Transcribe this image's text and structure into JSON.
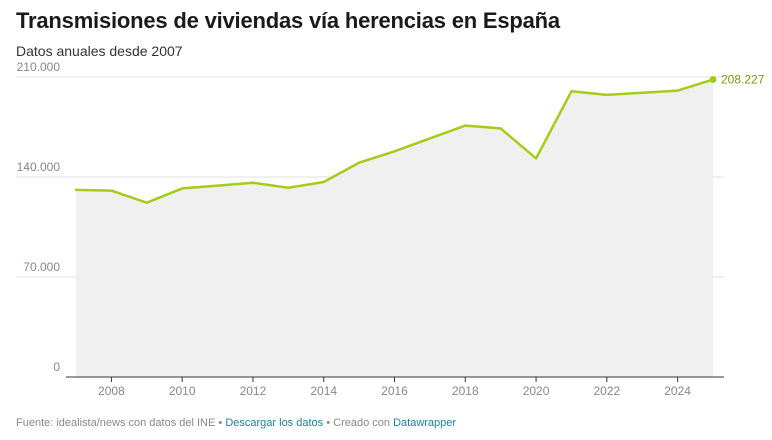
{
  "header": {
    "title": "Transmisiones de viviendas vía herencias en España",
    "subtitle": "Datos anuales desde 2007"
  },
  "chart_data": {
    "type": "area",
    "title": "Transmisiones de viviendas vía herencias en España",
    "subtitle": "Datos anuales desde 2007",
    "xlabel": "",
    "ylabel": "",
    "x": [
      2007,
      2008,
      2009,
      2010,
      2011,
      2012,
      2013,
      2014,
      2015,
      2016,
      2017,
      2018,
      2019,
      2020,
      2021,
      2022,
      2023,
      2024,
      2025
    ],
    "series": [
      {
        "values": [
          131000,
          130500,
          122000,
          132000,
          134000,
          136000,
          132500,
          136500,
          150000,
          158000,
          167000,
          176000,
          174000,
          153000,
          200000,
          197500,
          199000,
          200500,
          208227
        ]
      }
    ],
    "xticks": [
      "2008",
      "2010",
      "2012",
      "2014",
      "2016",
      "2018",
      "2020",
      "2022",
      "2024"
    ],
    "yticks": [
      "0",
      "70.000",
      "140.000",
      "210.000"
    ],
    "ylim": [
      0,
      210000
    ],
    "grid": true,
    "end_label": "208.227",
    "line_color": "#a3cd16",
    "fill_color": "#f0f0f0"
  },
  "footer": {
    "source": "Fuente: idealista/news con datos del INE",
    "separator": "•",
    "download": "Descargar los datos",
    "created": "Creado con",
    "tool": "Datawrapper"
  }
}
